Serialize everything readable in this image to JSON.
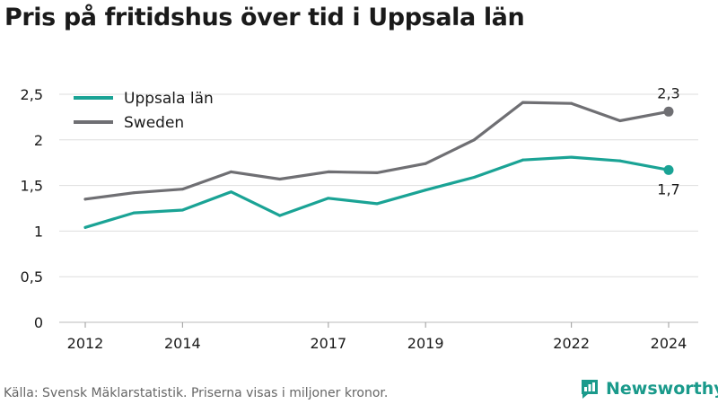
{
  "title": "Pris på fritidshus över tid i Uppsala län",
  "footer": {
    "source": "Källa: Svensk Mäklarstatistik. Priserna visas i miljoner kronor.",
    "brand": "Newsworthy"
  },
  "colors": {
    "uppsala": "#1aa395",
    "sweden": "#6f6f73",
    "grid": "#dedede",
    "brand": "#1a9a8b"
  },
  "chart_data": {
    "type": "line",
    "title": "Pris på fritidshus över tid i Uppsala län",
    "x": [
      2012,
      2013,
      2014,
      2015,
      2016,
      2017,
      2018,
      2019,
      2020,
      2021,
      2022,
      2023,
      2024
    ],
    "x_tick_values": [
      2012,
      2014,
      2017,
      2019,
      2022,
      2024
    ],
    "x_tick_labels": [
      "2012",
      "2014",
      "2017",
      "2019",
      "2022",
      "2024"
    ],
    "y_tick_values": [
      0,
      0.5,
      1,
      1.5,
      2,
      2.5
    ],
    "y_tick_labels": [
      "0",
      "0,5",
      "1",
      "1,5",
      "2",
      "2,5"
    ],
    "ylim": [
      0,
      2.5
    ],
    "grid": true,
    "legend_position": "top-left",
    "series": [
      {
        "name": "Uppsala län",
        "color": "#1aa395",
        "values": [
          1.04,
          1.2,
          1.23,
          1.43,
          1.17,
          1.36,
          1.3,
          1.45,
          1.59,
          1.78,
          1.81,
          1.77,
          1.67
        ],
        "end_label": "1,7",
        "end_label_position": "below"
      },
      {
        "name": "Sweden",
        "color": "#6f6f73",
        "values": [
          1.35,
          1.42,
          1.46,
          1.65,
          1.57,
          1.65,
          1.64,
          1.74,
          2.0,
          2.41,
          2.4,
          2.21,
          2.31
        ],
        "end_label": "2,3",
        "end_label_position": "above"
      }
    ]
  }
}
